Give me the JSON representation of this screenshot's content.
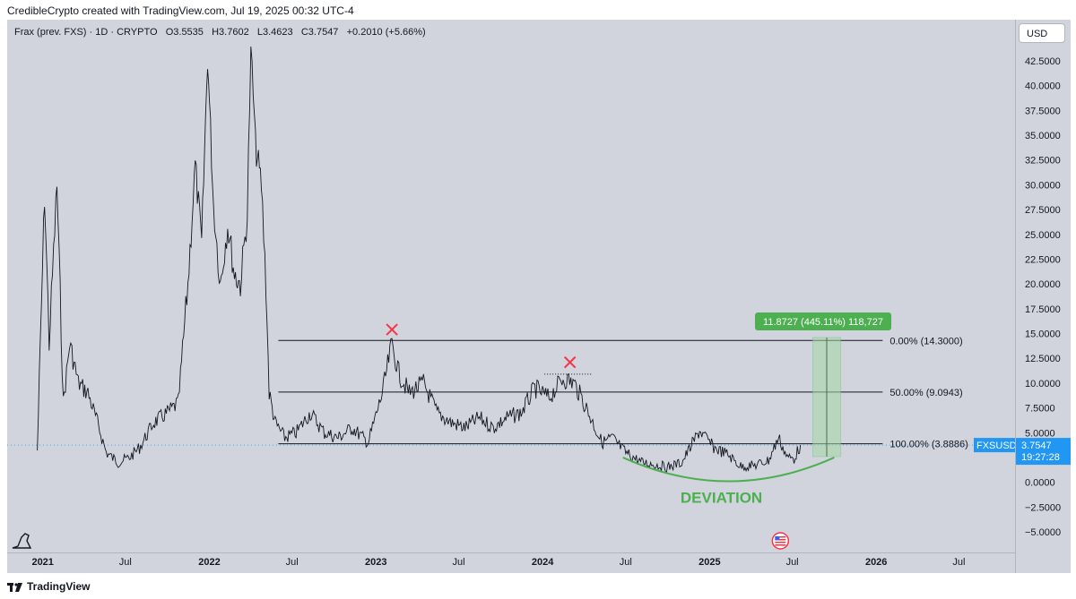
{
  "header": {
    "caption": "CredibleCrypto created with TradingView.com, Jul 19, 2025 00:32 UTC-4"
  },
  "legend": {
    "symbol": "Frax (prev. FXS) · 1D · CRYPTO",
    "o_label": "O",
    "o_value": "3.5535",
    "h_label": "H",
    "h_value": "3.7602",
    "l_label": "L",
    "l_value": "3.4623",
    "c_label": "C",
    "c_value": "3.7547",
    "change": "+0.2010 (+5.66%)"
  },
  "toolbar": {
    "currency": "USD"
  },
  "footer": {
    "brand": "TradingView"
  },
  "price_tag": {
    "symbol": "FXSUSD",
    "price": "3.7547",
    "countdown": "19:27:28"
  },
  "colors": {
    "background": "#d1d4dc",
    "candles": "#131722",
    "fib_line": "#131722",
    "cross": "#f23645",
    "deviation": "#4caf50",
    "measure_fill": "#a5d6a7",
    "measure_label": "#4caf50",
    "price_tag": "#2196f3"
  },
  "chart_data": {
    "type": "line",
    "y_axis": {
      "range": [
        -6,
        45
      ],
      "ticks": [
        "42.5000",
        "40.0000",
        "37.5000",
        "35.0000",
        "32.5000",
        "30.0000",
        "27.5000",
        "25.0000",
        "22.5000",
        "20.0000",
        "17.5000",
        "15.0000",
        "12.5000",
        "10.0000",
        "7.5000",
        "5.0000",
        "2.5000",
        "0.0000",
        "−2.5000",
        "−5.0000"
      ],
      "tick_values": [
        42.5,
        40,
        37.5,
        35,
        32.5,
        30,
        27.5,
        25,
        22.5,
        20,
        17.5,
        15,
        12.5,
        10,
        7.5,
        5,
        2.5,
        0,
        -2.5,
        -5
      ]
    },
    "x_axis": {
      "range": [
        "2020-10-15",
        "2026-11-01"
      ],
      "ticks": [
        {
          "label": "2021",
          "date": "2021-01-01",
          "bold": true
        },
        {
          "label": "Jul",
          "date": "2021-07-01",
          "bold": false
        },
        {
          "label": "2022",
          "date": "2022-01-01",
          "bold": true
        },
        {
          "label": "Jul",
          "date": "2022-07-01",
          "bold": false
        },
        {
          "label": "2023",
          "date": "2023-01-01",
          "bold": true
        },
        {
          "label": "Jul",
          "date": "2023-07-01",
          "bold": false
        },
        {
          "label": "2024",
          "date": "2024-01-01",
          "bold": true
        },
        {
          "label": "Jul",
          "date": "2024-07-01",
          "bold": false
        },
        {
          "label": "2025",
          "date": "2025-01-01",
          "bold": true
        },
        {
          "label": "Jul",
          "date": "2025-07-01",
          "bold": false
        },
        {
          "label": "2026",
          "date": "2026-01-01",
          "bold": true
        },
        {
          "label": "Jul",
          "date": "2026-07-01",
          "bold": false
        }
      ]
    },
    "series": [
      {
        "values": [
          {
            "x": "2020-12-20",
            "y": 3.2
          },
          {
            "x": "2021-01-05",
            "y": 29
          },
          {
            "x": "2021-01-15",
            "y": 14
          },
          {
            "x": "2021-02-01",
            "y": 30
          },
          {
            "x": "2021-02-15",
            "y": 8
          },
          {
            "x": "2021-03-01",
            "y": 14
          },
          {
            "x": "2021-03-20",
            "y": 10
          },
          {
            "x": "2021-04-10",
            "y": 9
          },
          {
            "x": "2021-05-01",
            "y": 6
          },
          {
            "x": "2021-05-20",
            "y": 3
          },
          {
            "x": "2021-06-15",
            "y": 2
          },
          {
            "x": "2021-07-10",
            "y": 2.5
          },
          {
            "x": "2021-08-01",
            "y": 3.5
          },
          {
            "x": "2021-09-01",
            "y": 6
          },
          {
            "x": "2021-10-01",
            "y": 7
          },
          {
            "x": "2021-10-25",
            "y": 8
          },
          {
            "x": "2021-11-15",
            "y": 20
          },
          {
            "x": "2021-12-01",
            "y": 32
          },
          {
            "x": "2021-12-15",
            "y": 24
          },
          {
            "x": "2021-12-28",
            "y": 43
          },
          {
            "x": "2022-01-10",
            "y": 28
          },
          {
            "x": "2022-01-25",
            "y": 20
          },
          {
            "x": "2022-02-10",
            "y": 26
          },
          {
            "x": "2022-02-25",
            "y": 21
          },
          {
            "x": "2022-03-10",
            "y": 20
          },
          {
            "x": "2022-03-25",
            "y": 27
          },
          {
            "x": "2022-04-02",
            "y": 44
          },
          {
            "x": "2022-04-12",
            "y": 34
          },
          {
            "x": "2022-04-25",
            "y": 30
          },
          {
            "x": "2022-05-05",
            "y": 20
          },
          {
            "x": "2022-05-12",
            "y": 9
          },
          {
            "x": "2022-05-25",
            "y": 6
          },
          {
            "x": "2022-06-15",
            "y": 4.5
          },
          {
            "x": "2022-07-10",
            "y": 5
          },
          {
            "x": "2022-08-10",
            "y": 7
          },
          {
            "x": "2022-09-10",
            "y": 5
          },
          {
            "x": "2022-10-10",
            "y": 4.5
          },
          {
            "x": "2022-11-10",
            "y": 5.5
          },
          {
            "x": "2022-12-15",
            "y": 4
          },
          {
            "x": "2023-01-15",
            "y": 9
          },
          {
            "x": "2023-02-05",
            "y": 14
          },
          {
            "x": "2023-02-20",
            "y": 11
          },
          {
            "x": "2023-03-15",
            "y": 9
          },
          {
            "x": "2023-04-15",
            "y": 10
          },
          {
            "x": "2023-05-15",
            "y": 7
          },
          {
            "x": "2023-06-15",
            "y": 6
          },
          {
            "x": "2023-07-15",
            "y": 5.5
          },
          {
            "x": "2023-08-15",
            "y": 6.5
          },
          {
            "x": "2023-09-15",
            "y": 5.5
          },
          {
            "x": "2023-10-15",
            "y": 6.5
          },
          {
            "x": "2023-11-15",
            "y": 7
          },
          {
            "x": "2023-12-15",
            "y": 9.5
          },
          {
            "x": "2024-01-15",
            "y": 8.5
          },
          {
            "x": "2024-02-15",
            "y": 10.5
          },
          {
            "x": "2024-03-10",
            "y": 10
          },
          {
            "x": "2024-04-01",
            "y": 8
          },
          {
            "x": "2024-04-20",
            "y": 6
          },
          {
            "x": "2024-05-10",
            "y": 4
          },
          {
            "x": "2024-06-01",
            "y": 4.5
          },
          {
            "x": "2024-07-01",
            "y": 3
          },
          {
            "x": "2024-08-05",
            "y": 2
          },
          {
            "x": "2024-09-01",
            "y": 1.8
          },
          {
            "x": "2024-10-01",
            "y": 1.5
          },
          {
            "x": "2024-11-01",
            "y": 2
          },
          {
            "x": "2024-12-10",
            "y": 5.2
          },
          {
            "x": "2025-01-10",
            "y": 3.5
          },
          {
            "x": "2025-02-10",
            "y": 2.8
          },
          {
            "x": "2025-03-10",
            "y": 1.6
          },
          {
            "x": "2025-04-10",
            "y": 1.7
          },
          {
            "x": "2025-05-10",
            "y": 2.2
          },
          {
            "x": "2025-06-01",
            "y": 4.5
          },
          {
            "x": "2025-06-20",
            "y": 2.5
          },
          {
            "x": "2025-07-05",
            "y": 2.4
          },
          {
            "x": "2025-07-19",
            "y": 3.75
          }
        ]
      }
    ]
  },
  "annotations": {
    "fib_levels": [
      {
        "label": "0.00% (14.3000)",
        "value": 14.3
      },
      {
        "label": "50.00% (9.0943)",
        "value": 9.0943
      },
      {
        "label": "100.00% (3.8886)",
        "value": 3.8886
      }
    ],
    "fib_start": "2022-06-01",
    "fib_end": "2026-01-15",
    "crosses": [
      {
        "x": "2023-02-05",
        "y": 15.4
      },
      {
        "x": "2024-03-01",
        "y": 12.1
      }
    ],
    "resistance_dotted": {
      "x1": "2024-01-05",
      "x2": "2024-04-20",
      "y": 10.9
    },
    "deviation_label": "DEVIATION",
    "deviation_arc": {
      "x_start": "2024-06-25",
      "x_end": "2025-10-01",
      "y_edge": 2.5,
      "y_bottom": 0.1
    },
    "measure": {
      "label": "11.8727 (445.11%) 118,727",
      "x1": "2025-08-15",
      "x2": "2025-10-15",
      "y_low": 2.6,
      "y_high": 14.6
    }
  }
}
